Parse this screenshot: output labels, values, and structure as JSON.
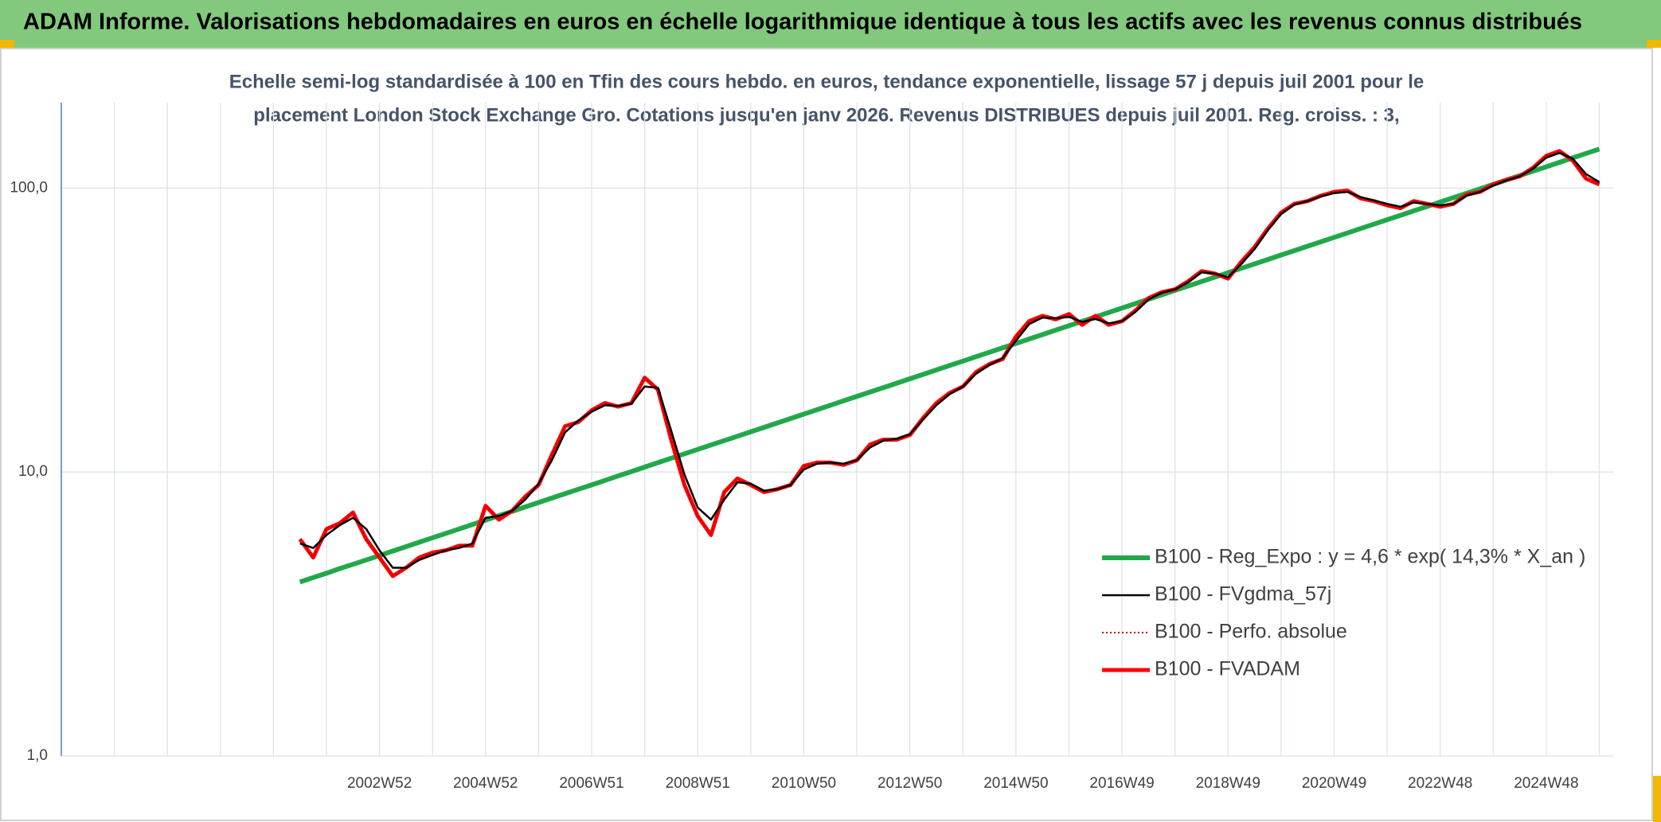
{
  "chart_data": {
    "type": "line",
    "title": "ADAM Informe. Valorisations hebdomadaires en euros en échelle logarithmique identique à tous les actifs avec les revenus connus distribués",
    "subtitle": [
      "Echelle semi-log standardisée à 100 en Tfin des cours hebdo. en euros, tendance exponentielle, lissage 57 j depuis juil 2001 pour le",
      "placement London Stock Exchange Gro. Cotations jusqu'en janv 2026. Revenus DISTRIBUES depuis juil 2001. Reg. croiss. : 3,"
    ],
    "categories": [
      null,
      null,
      null,
      null,
      null,
      null,
      null,
      null,
      null,
      null,
      null,
      null,
      null,
      null,
      null,
      null,
      null,
      null,
      null,
      null,
      null,
      null,
      null,
      null,
      "2002W52",
      null,
      null,
      null,
      null,
      null,
      null,
      null,
      "2004W52",
      null,
      null,
      null,
      null,
      null,
      null,
      null,
      "2006W51",
      null,
      null,
      null,
      null,
      null,
      null,
      null,
      "2008W51",
      null,
      null,
      null,
      null,
      null,
      null,
      null,
      "2010W50",
      null,
      null,
      null,
      null,
      null,
      null,
      null,
      "2012W50",
      null,
      null,
      null,
      null,
      null,
      null,
      null,
      "2014W50",
      null,
      null,
      null,
      null,
      null,
      null,
      null,
      "2016W49",
      null,
      null,
      null,
      null,
      null,
      null,
      null,
      "2018W49",
      null,
      null,
      null,
      null,
      null,
      null,
      null,
      "2020W49",
      null,
      null,
      null,
      null,
      null,
      null,
      null,
      "2022W48",
      null,
      null,
      null,
      null,
      null,
      null,
      null,
      "2024W48",
      null,
      null,
      null,
      null
    ],
    "series": [
      {
        "name": "B100 - Reg_Expo : y = 4,6 * exp( 14,3% *  X_an )",
        "color": "#21a84a",
        "style": "solid",
        "width": 6,
        "values": [
          null,
          null,
          null,
          null,
          null,
          null,
          null,
          null,
          null,
          null,
          null,
          null,
          null,
          null,
          null,
          null,
          null,
          null,
          4.1,
          4.25,
          4.4,
          4.57,
          4.73,
          4.9,
          5.08,
          5.27,
          5.46,
          5.66,
          5.87,
          6.08,
          6.3,
          6.53,
          6.77,
          7.02,
          7.27,
          7.54,
          7.81,
          8.1,
          8.39,
          8.7,
          9.01,
          9.34,
          9.69,
          10.04,
          10.41,
          10.79,
          11.18,
          11.59,
          12.01,
          12.45,
          12.9,
          13.37,
          13.86,
          14.36,
          14.89,
          15.43,
          16.0,
          16.58,
          17.19,
          17.82,
          18.47,
          19.14,
          19.83,
          20.55,
          21.3,
          22.08,
          22.89,
          23.73,
          24.59,
          25.49,
          26.42,
          27.38,
          28.38,
          29.42,
          30.49,
          31.6,
          32.76,
          33.95,
          35.19,
          36.47,
          37.81,
          39.19,
          40.61,
          42.09,
          43.63,
          45.22,
          46.87,
          48.58,
          50.35,
          52.19,
          54.09,
          56.06,
          58.11,
          60.23,
          62.42,
          64.7,
          67.06,
          69.5,
          72.04,
          74.67,
          77.39,
          80.21,
          83.14,
          86.17,
          89.32,
          92.57,
          95.95,
          99.45,
          103.1,
          106.8,
          110.7,
          114.8,
          118.9,
          123.3,
          127.8,
          132.5,
          137.3
        ]
      },
      {
        "name": "B100 - FVgdma_57j",
        "color": "#000000",
        "style": "solid",
        "width": 2.5,
        "values": [
          null,
          null,
          null,
          null,
          null,
          null,
          null,
          null,
          null,
          null,
          null,
          null,
          null,
          null,
          null,
          null,
          null,
          null,
          5.6,
          5.4,
          6.0,
          6.5,
          6.9,
          6.3,
          5.3,
          4.6,
          4.6,
          4.9,
          5.1,
          5.3,
          5.4,
          5.6,
          6.9,
          7.0,
          7.3,
          8.0,
          9.1,
          11.0,
          13.8,
          15.2,
          16.3,
          17.2,
          17.1,
          17.4,
          20.0,
          19.8,
          14.0,
          9.8,
          7.5,
          6.8,
          8.0,
          9.2,
          9.1,
          8.6,
          8.7,
          9.0,
          10.2,
          10.7,
          10.8,
          10.7,
          11.0,
          12.2,
          12.9,
          13.1,
          13.6,
          15.3,
          17.2,
          18.8,
          20.0,
          22.2,
          23.8,
          25.2,
          29.0,
          33.2,
          35.0,
          34.8,
          35.2,
          33.8,
          34.6,
          33.4,
          34.0,
          36.6,
          40.5,
          42.8,
          44.0,
          46.6,
          50.5,
          50.0,
          48.5,
          54.0,
          61.0,
          71.0,
          81.0,
          87.5,
          90.0,
          93.5,
          96.0,
          97.0,
          93.0,
          90.5,
          88.0,
          86.0,
          89.0,
          88.0,
          87.0,
          88.0,
          94.0,
          97.0,
          102.0,
          106.5,
          110.0,
          117.0,
          128.0,
          133.0,
          127.0,
          112.0,
          105.0
        ]
      },
      {
        "name": "B100 - Perfo. absolue",
        "color": "#c00000",
        "style": "dotted",
        "width": 2,
        "values": [
          null,
          null,
          null,
          null,
          null,
          null,
          null,
          null,
          null,
          null,
          null,
          null,
          null,
          null,
          null,
          null,
          null,
          null,
          5.8,
          5.0,
          6.3,
          6.6,
          7.2,
          5.8,
          5.0,
          4.3,
          4.6,
          5.0,
          5.2,
          5.3,
          5.5,
          5.5,
          7.6,
          6.8,
          7.3,
          8.2,
          9.0,
          11.5,
          14.5,
          15.0,
          16.5,
          17.5,
          17.0,
          17.5,
          21.5,
          19.5,
          13.0,
          9.0,
          7.0,
          6.0,
          8.5,
          9.5,
          9.0,
          8.5,
          8.7,
          9.0,
          10.5,
          10.8,
          10.8,
          10.6,
          11.0,
          12.5,
          13.0,
          13.0,
          13.5,
          15.5,
          17.5,
          19.0,
          20.0,
          22.5,
          24.0,
          25.0,
          30.0,
          34.0,
          35.5,
          34.5,
          36.0,
          33.0,
          35.5,
          33.0,
          34.0,
          37.0,
          41.0,
          43.0,
          44.0,
          47.0,
          51.0,
          50.0,
          48.0,
          55.0,
          62.0,
          72.0,
          82.0,
          88.0,
          90.0,
          94.0,
          97.0,
          98.0,
          92.0,
          90.0,
          87.0,
          85.0,
          90.0,
          88.0,
          86.0,
          88.0,
          95.0,
          97.0,
          103.0,
          107.0,
          110.0,
          118.0,
          130.0,
          135.0,
          125.0,
          108.0,
          103.0
        ]
      },
      {
        "name": "B100 - FVADAM",
        "color": "#ff0000",
        "style": "solid",
        "width": 5,
        "values": [
          null,
          null,
          null,
          null,
          null,
          null,
          null,
          null,
          null,
          null,
          null,
          null,
          null,
          null,
          null,
          null,
          null,
          null,
          5.8,
          5.0,
          6.3,
          6.6,
          7.2,
          5.8,
          5.0,
          4.3,
          4.6,
          5.0,
          5.2,
          5.3,
          5.5,
          5.5,
          7.6,
          6.8,
          7.3,
          8.2,
          9.0,
          11.5,
          14.5,
          15.0,
          16.5,
          17.5,
          17.0,
          17.5,
          21.5,
          19.5,
          13.0,
          9.0,
          7.0,
          6.0,
          8.5,
          9.5,
          9.0,
          8.5,
          8.7,
          9.0,
          10.5,
          10.8,
          10.8,
          10.6,
          11.0,
          12.5,
          13.0,
          13.0,
          13.5,
          15.5,
          17.5,
          19.0,
          20.0,
          22.5,
          24.0,
          25.0,
          30.0,
          34.0,
          35.5,
          34.5,
          36.0,
          33.0,
          35.5,
          33.0,
          34.0,
          37.0,
          41.0,
          43.0,
          44.0,
          47.0,
          51.0,
          50.0,
          48.0,
          55.0,
          62.0,
          72.0,
          82.0,
          88.0,
          90.0,
          94.0,
          97.0,
          98.0,
          92.0,
          90.0,
          87.0,
          85.0,
          90.0,
          88.0,
          86.0,
          88.0,
          95.0,
          97.0,
          103.0,
          107.0,
          110.0,
          118.0,
          130.0,
          135.0,
          125.0,
          108.0,
          103.0
        ]
      }
    ],
    "ylim": [
      1,
      200
    ],
    "yticks": [
      {
        "value": 1,
        "label": "1,0"
      },
      {
        "value": 10,
        "label": "10,0"
      },
      {
        "value": 100,
        "label": "100,0"
      }
    ],
    "log_y": true,
    "grid": true,
    "legend": "right"
  }
}
